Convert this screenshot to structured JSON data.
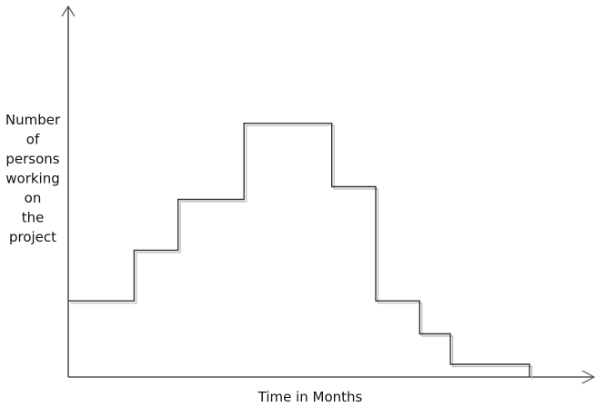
{
  "chart_data": {
    "type": "line",
    "step": true,
    "xlabel": "Time in Months",
    "ylabel_lines": [
      "Number",
      "of",
      "persons",
      "working",
      "on",
      "the",
      "project"
    ],
    "x_ticks_labeled": false,
    "y_ticks_labeled": false,
    "grid": false,
    "legend": "none",
    "series": [
      {
        "points": [
          {
            "x": 0,
            "y": 3.0
          },
          {
            "x": 1.5,
            "y": 3.0
          },
          {
            "x": 1.5,
            "y": 5.0
          },
          {
            "x": 2.5,
            "y": 5.0
          },
          {
            "x": 2.5,
            "y": 7.0
          },
          {
            "x": 4.0,
            "y": 7.0
          },
          {
            "x": 4.0,
            "y": 10.0
          },
          {
            "x": 6.0,
            "y": 10.0
          },
          {
            "x": 6.0,
            "y": 7.5
          },
          {
            "x": 7.0,
            "y": 7.5
          },
          {
            "x": 7.0,
            "y": 3.0
          },
          {
            "x": 8.0,
            "y": 3.0
          },
          {
            "x": 8.0,
            "y": 1.7
          },
          {
            "x": 8.7,
            "y": 1.7
          },
          {
            "x": 8.7,
            "y": 0.5
          },
          {
            "x": 10.5,
            "y": 0.5
          },
          {
            "x": 10.5,
            "y": 0.0
          }
        ]
      }
    ],
    "xlim": [
      0,
      11.7
    ],
    "ylim": [
      0,
      14.0
    ],
    "color": "#333333"
  }
}
